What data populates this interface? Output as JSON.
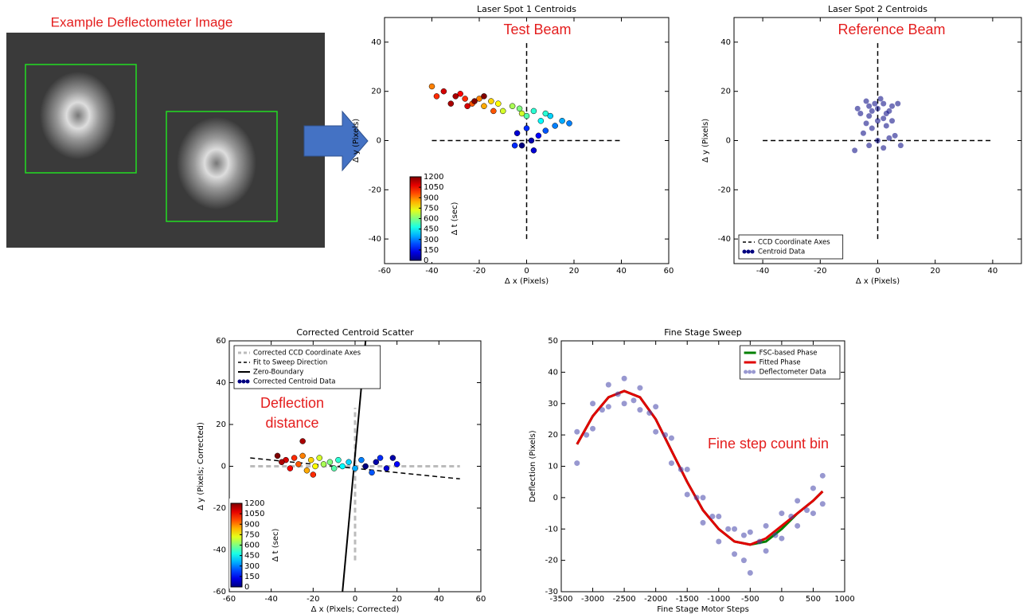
{
  "image_panel": {
    "caption": "Example Deflectometer Image"
  },
  "chart_data": [
    {
      "type": "scatter",
      "title": "Laser Spot 1 Centroids",
      "annotation": [
        "Test Beam"
      ],
      "x_label": "Δ x (Pixels)",
      "y_label": "Δ y (Pixels)",
      "xlim": [
        -60,
        60
      ],
      "xticks": [
        -60,
        -40,
        -20,
        0,
        20,
        40,
        60
      ],
      "ylim": [
        -50,
        50
      ],
      "yticks": [
        -40,
        -20,
        0,
        20,
        40
      ],
      "colorbar": {
        "label": "Δ t (sec)",
        "colormap": "jet",
        "lim": [
          0,
          1200
        ],
        "ticks": [
          0,
          150,
          300,
          450,
          600,
          750,
          900,
          1050,
          1200
        ]
      },
      "series": [
        {
          "kind": "line",
          "color": "#000000",
          "dash": true,
          "width": 1.5,
          "x": [
            -40,
            40,
            null,
            0,
            0
          ],
          "y": [
            0,
            0,
            null,
            -40,
            40
          ]
        },
        {
          "kind": "scatter",
          "color": "#000080",
          "x": [
            -2,
            2,
            -4,
            5,
            0,
            8,
            12,
            15,
            10,
            6,
            3,
            0,
            -3,
            -6,
            -10,
            -12,
            -15,
            -18,
            -20,
            -23,
            -26,
            -28,
            -25,
            -30,
            -22,
            -35,
            -38,
            -40,
            -32,
            18,
            3,
            -5,
            -2,
            8,
            -18,
            -14
          ],
          "y": [
            -2,
            0,
            3,
            2,
            5,
            4,
            6,
            8,
            10,
            8,
            12,
            10,
            13,
            14,
            12,
            15,
            16,
            14,
            17,
            15,
            17,
            19,
            14,
            18,
            16,
            20,
            18,
            22,
            15,
            7,
            -4,
            -2,
            11,
            11,
            18,
            12
          ],
          "t": [
            0,
            50,
            100,
            150,
            200,
            250,
            300,
            350,
            400,
            450,
            500,
            550,
            600,
            650,
            700,
            750,
            800,
            850,
            900,
            950,
            1000,
            1050,
            1100,
            1150,
            1200,
            1100,
            1000,
            900,
            1150,
            300,
            100,
            200,
            700,
            500,
            1200,
            950
          ]
        }
      ]
    },
    {
      "type": "scatter",
      "title": "Laser Spot 2 Centroids",
      "annotation": [
        "Reference Beam"
      ],
      "x_label": "Δ x (Pixels)",
      "y_label": "Δ y (Pixels)",
      "xlim": [
        -50,
        50
      ],
      "xticks": [
        -40,
        -20,
        0,
        20,
        40
      ],
      "ylim": [
        -50,
        50
      ],
      "yticks": [
        -40,
        -20,
        0,
        20,
        40
      ],
      "legend": "lower left",
      "series": [
        {
          "name": "CCD Coordinate Axes",
          "kind": "line",
          "color": "#000000",
          "dash": true,
          "width": 1.5,
          "x": [
            -40,
            40,
            null,
            0,
            0
          ],
          "y": [
            0,
            0,
            null,
            -40,
            40
          ]
        },
        {
          "name": "Centroid Data",
          "kind": "scatter",
          "color": "#000080",
          "x": [
            0,
            -3,
            4,
            -5,
            2,
            6,
            -2,
            3,
            -4,
            0,
            5,
            -3,
            2,
            -6,
            4,
            0,
            -3,
            3,
            -1,
            5,
            -4,
            1,
            -2,
            2,
            7,
            -7,
            8,
            -8
          ],
          "y": [
            0,
            -2,
            1,
            3,
            -3,
            2,
            5,
            6,
            7,
            8,
            8,
            10,
            9,
            11,
            12,
            13,
            14,
            11,
            15,
            14,
            16,
            17,
            12,
            15,
            15,
            13,
            -2,
            -4
          ],
          "t": [
            0,
            50,
            100,
            150,
            200,
            250,
            300,
            350,
            400,
            450,
            500,
            600,
            650,
            700,
            750,
            800,
            850,
            900,
            950,
            1000,
            1050,
            1100,
            1150,
            1200,
            1100,
            1000,
            300,
            100
          ]
        }
      ]
    },
    {
      "type": "scatter",
      "title": "Corrected Centroid Scatter",
      "annotation": [
        "Deflection",
        "distance"
      ],
      "x_label": "Δ x (Pixels; Corrected)",
      "y_label": "Δ y (Pixels; Corrected)",
      "xlim": [
        -60,
        60
      ],
      "xticks": [
        -60,
        -40,
        -20,
        0,
        20,
        40,
        60
      ],
      "ylim": [
        -60,
        60
      ],
      "yticks": [
        -60,
        -40,
        -20,
        0,
        20,
        40,
        60
      ],
      "legend": "upper left",
      "colorbar": {
        "label": "Δ t (sec)",
        "colormap": "jet",
        "lim": [
          0,
          1200
        ],
        "ticks": [
          0,
          150,
          300,
          450,
          600,
          750,
          900,
          1050,
          1200
        ]
      },
      "series": [
        {
          "name": "Corrected CCD Coordinate Axes",
          "kind": "line",
          "color": "#bbbbbb",
          "dash": true,
          "width": 3,
          "x": [
            -50,
            50,
            null,
            0,
            0
          ],
          "y": [
            0,
            0,
            null,
            -45,
            28
          ]
        },
        {
          "name": "Fit to Sweep Direction",
          "kind": "line",
          "color": "#000000",
          "dash": true,
          "width": 1.5,
          "x": [
            -50,
            50
          ],
          "y": [
            4,
            -6
          ]
        },
        {
          "name": "Zero-Boundary",
          "kind": "line",
          "color": "#000000",
          "dash": false,
          "width": 2,
          "x": [
            -6,
            5
          ],
          "y": [
            -60,
            60
          ]
        },
        {
          "name": "Corrected Centroid Data",
          "kind": "scatter",
          "color": "#000080",
          "x": [
            5,
            10,
            15,
            20,
            12,
            8,
            3,
            0,
            -3,
            -6,
            -8,
            -10,
            -12,
            -15,
            -17,
            -19,
            -21,
            -23,
            -25,
            -27,
            -29,
            -31,
            -33,
            -35,
            -37,
            -25,
            -20,
            18
          ],
          "y": [
            0,
            2,
            -1,
            1,
            4,
            -3,
            3,
            -1,
            2,
            0,
            3,
            -1,
            2,
            1,
            4,
            0,
            3,
            -2,
            5,
            1,
            4,
            -1,
            3,
            2,
            5,
            12,
            -4,
            4
          ],
          "t": [
            0,
            50,
            100,
            150,
            200,
            250,
            300,
            350,
            400,
            450,
            500,
            550,
            600,
            650,
            700,
            750,
            800,
            850,
            900,
            950,
            1000,
            1050,
            1100,
            1150,
            1200,
            1150,
            1000,
            50
          ]
        }
      ]
    },
    {
      "type": "scatter",
      "title": "Fine Stage Sweep",
      "annotation": [
        "Fine step count bin"
      ],
      "x_label": "Fine Stage Motor Steps",
      "y_label": "Deflection (Pixels)",
      "xlim": [
        -3500,
        1000
      ],
      "xticks": [
        -3500,
        -3000,
        -2500,
        -2000,
        -1500,
        -1000,
        -500,
        0,
        500,
        1000
      ],
      "ylim": [
        -30,
        50
      ],
      "yticks": [
        -30,
        -20,
        -10,
        0,
        10,
        20,
        30,
        40,
        50
      ],
      "legend": "upper right",
      "series": [
        {
          "name": "FSC-based Phase",
          "kind": "line",
          "color": "#008000",
          "dash": false,
          "width": 3,
          "x": [
            -3250,
            -3000,
            -2750,
            -2500,
            -2250,
            -2000,
            -1750,
            -1500,
            -1250,
            -1000,
            -750,
            -500,
            -250,
            0,
            250,
            500,
            650
          ],
          "y": [
            17,
            26,
            32,
            34,
            32,
            25,
            15,
            5,
            -4,
            -10,
            -14,
            -15,
            -14,
            -10,
            -5,
            -1,
            2
          ]
        },
        {
          "name": "Fitted Phase",
          "kind": "line",
          "color": "#e00000",
          "dash": false,
          "width": 3,
          "x": [
            -3250,
            -3000,
            -2750,
            -2500,
            -2250,
            -2000,
            -1750,
            -1500,
            -1250,
            -1000,
            -750,
            -500,
            -250,
            0,
            250,
            500,
            650
          ],
          "y": [
            17,
            26,
            32,
            34,
            32,
            25,
            15,
            5,
            -4,
            -10,
            -14,
            -15,
            -13,
            -9,
            -5,
            -1,
            2
          ]
        },
        {
          "name": "Deflectometer Data",
          "kind": "scatter",
          "color": "#4444aa",
          "x": [
            -3250,
            -3250,
            -3100,
            -3000,
            -3000,
            -2850,
            -2750,
            -2750,
            -2600,
            -2500,
            -2500,
            -2350,
            -2250,
            -2250,
            -2100,
            -2000,
            -2000,
            -1850,
            -1750,
            -1750,
            -1600,
            -1500,
            -1500,
            -1350,
            -1250,
            -1250,
            -1100,
            -1000,
            -1000,
            -850,
            -750,
            -750,
            -600,
            -600,
            -500,
            -500,
            -350,
            -250,
            -250,
            -100,
            0,
            0,
            150,
            250,
            250,
            400,
            500,
            500,
            650,
            650
          ],
          "y": [
            21,
            11,
            20,
            30,
            22,
            28,
            36,
            29,
            33,
            38,
            30,
            31,
            35,
            28,
            27,
            29,
            21,
            20,
            19,
            11,
            9,
            9,
            1,
            0,
            0,
            -8,
            -6,
            -6,
            -14,
            -10,
            -10,
            -18,
            -12,
            -20,
            -11,
            -24,
            -14,
            -9,
            -17,
            -12,
            -5,
            -13,
            -6,
            -1,
            -9,
            -4,
            3,
            -5,
            7,
            -2
          ]
        }
      ]
    }
  ]
}
